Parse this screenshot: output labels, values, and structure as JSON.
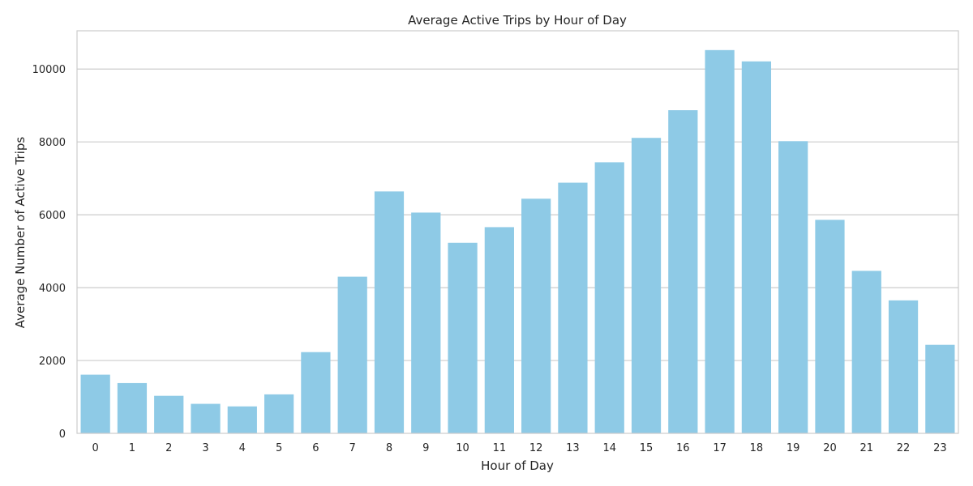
{
  "chart_data": {
    "type": "bar",
    "title": "Average Active Trips by Hour of Day",
    "xlabel": "Hour of Day",
    "ylabel": "Average Number of Active Trips",
    "categories": [
      "0",
      "1",
      "2",
      "3",
      "4",
      "5",
      "6",
      "7",
      "8",
      "9",
      "10",
      "11",
      "12",
      "13",
      "14",
      "15",
      "16",
      "17",
      "18",
      "19",
      "20",
      "21",
      "22",
      "23"
    ],
    "values": [
      1610,
      1380,
      1030,
      810,
      740,
      1070,
      2230,
      4300,
      6640,
      6060,
      5230,
      5660,
      6440,
      6880,
      7440,
      8110,
      8870,
      10520,
      10210,
      8020,
      5860,
      4460,
      3650,
      2430
    ],
    "ylim": [
      0,
      11050
    ],
    "yticks": [
      0,
      2000,
      4000,
      6000,
      8000,
      10000
    ],
    "bar_color": "#8ecae6",
    "grid": true,
    "grid_axis": "y"
  }
}
